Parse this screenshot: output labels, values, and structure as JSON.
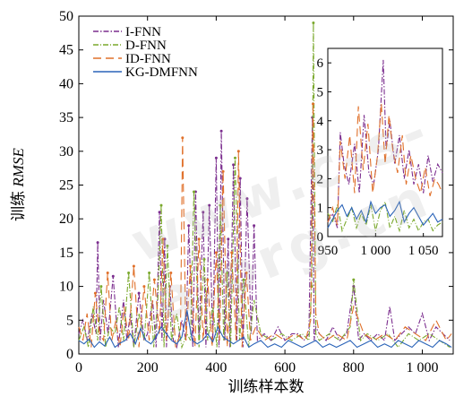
{
  "watermark": "www.c-s-a.org.cn",
  "chart_data": {
    "type": "line",
    "xlabel": "训练样本数",
    "ylabel_prefix": "训练 ",
    "ylabel_italic": "RMSE",
    "xlim": [
      0,
      1090
    ],
    "ylim": [
      0,
      50
    ],
    "xticks": [
      0,
      200,
      400,
      600,
      800,
      1000
    ],
    "xtick_labels": [
      "0",
      "200",
      "400",
      "600",
      "800",
      "1 000"
    ],
    "yticks": [
      0,
      5,
      10,
      15,
      20,
      25,
      30,
      35,
      40,
      45,
      50
    ],
    "legend_position": "top-left",
    "series": [
      {
        "name": "I-FNN",
        "color": "#7b2d8e",
        "dash": "6,2,1.5,2",
        "x": [
          0,
          12,
          25,
          38,
          50,
          55,
          62,
          72,
          85,
          100,
          115,
          130,
          140,
          150,
          160,
          175,
          190,
          200,
          215,
          225,
          235,
          242,
          250,
          255,
          265,
          275,
          285,
          300,
          312,
          320,
          332,
          340,
          350,
          362,
          370,
          380,
          390,
          400,
          408,
          415,
          425,
          435,
          440,
          450,
          460,
          470,
          478,
          490,
          502,
          510,
          520,
          540,
          560,
          580,
          600,
          620,
          640,
          655,
          670,
          680,
          685,
          690,
          700,
          720,
          740,
          760,
          780,
          800,
          815,
          830,
          850,
          870,
          890,
          905,
          920,
          940,
          960,
          980,
          1000,
          1020,
          1040,
          1060,
          1080
        ],
        "y": [
          3,
          5,
          2,
          6,
          3,
          16.5,
          2,
          8,
          3,
          11.5,
          1,
          8,
          2,
          6,
          1,
          9,
          2,
          3,
          8,
          1,
          21,
          2,
          17,
          1,
          10,
          2,
          1,
          5,
          2,
          19,
          1,
          24,
          2,
          21,
          1,
          22,
          2,
          29,
          1,
          33,
          2,
          17,
          1,
          28,
          2,
          26,
          1,
          23,
          3,
          19,
          2,
          3,
          2,
          4,
          2,
          3,
          3,
          2,
          3,
          35,
          2,
          4,
          3,
          2,
          4,
          2,
          3,
          10,
          2,
          3,
          2,
          3,
          2,
          7,
          2,
          3,
          4,
          3,
          6,
          2,
          4,
          3,
          2
        ]
      },
      {
        "name": "D-FNN",
        "color": "#7aa82c",
        "dash": "6,2,1,2",
        "x": [
          0,
          15,
          28,
          42,
          55,
          65,
          78,
          90,
          105,
          118,
          130,
          145,
          160,
          175,
          190,
          205,
          218,
          230,
          240,
          248,
          258,
          270,
          285,
          300,
          315,
          325,
          335,
          350,
          365,
          375,
          390,
          402,
          412,
          422,
          432,
          442,
          455,
          468,
          480,
          495,
          510,
          530,
          560,
          590,
          620,
          650,
          670,
          678,
          683,
          690,
          700,
          730,
          760,
          790,
          800,
          820,
          840,
          870,
          900,
          930,
          960,
          990,
          1020,
          1050,
          1080
        ],
        "y": [
          2,
          4,
          1,
          7,
          2,
          10,
          1,
          4,
          3,
          7,
          2,
          12,
          1,
          6,
          2,
          12,
          1,
          8,
          22,
          1,
          16,
          2,
          6,
          1,
          3,
          2,
          24,
          1,
          14,
          2,
          7,
          1,
          22,
          2,
          12,
          1,
          29,
          2,
          11,
          1,
          8,
          3,
          2,
          3,
          2,
          3,
          2,
          10,
          49,
          3,
          2,
          3,
          2,
          4,
          11,
          2,
          3,
          2,
          3,
          1,
          3,
          2,
          3,
          2,
          1
        ]
      },
      {
        "name": "ID-FNN",
        "color": "#e0702a",
        "dash": "9,5",
        "x": [
          0,
          12,
          24,
          36,
          48,
          60,
          72,
          84,
          96,
          108,
          120,
          132,
          145,
          160,
          175,
          190,
          205,
          220,
          235,
          245,
          255,
          268,
          282,
          296,
          302,
          312,
          325,
          338,
          350,
          362,
          375,
          388,
          400,
          410,
          420,
          432,
          445,
          458,
          465,
          475,
          488,
          500,
          515,
          540,
          570,
          600,
          630,
          660,
          675,
          682,
          690,
          700,
          720,
          750,
          780,
          800,
          830,
          860,
          890,
          920,
          950,
          980,
          1010,
          1040,
          1070,
          1085
        ],
        "y": [
          4,
          2,
          6,
          1,
          9,
          3,
          2,
          12,
          2,
          5,
          1,
          7,
          2,
          13,
          1,
          10,
          2,
          11,
          3,
          17,
          2,
          12,
          1,
          3,
          32,
          2,
          13,
          1,
          17,
          2,
          11,
          1,
          15,
          2,
          27,
          1,
          15,
          2,
          30,
          1,
          12,
          2,
          4,
          2,
          3,
          2,
          3,
          2,
          5,
          37,
          6,
          3,
          2,
          3,
          2,
          7,
          3,
          2,
          3,
          2,
          4,
          3,
          2,
          5,
          2,
          3
        ]
      },
      {
        "name": "KG-DMFNN",
        "color": "#2a63b8",
        "dash": "",
        "x": [
          0,
          15,
          30,
          45,
          60,
          75,
          90,
          105,
          120,
          135,
          150,
          165,
          180,
          195,
          210,
          225,
          240,
          255,
          270,
          285,
          300,
          315,
          330,
          345,
          360,
          375,
          390,
          405,
          420,
          435,
          450,
          465,
          480,
          495,
          510,
          530,
          550,
          570,
          590,
          610,
          630,
          650,
          670,
          690,
          710,
          730,
          750,
          770,
          790,
          810,
          830,
          850,
          870,
          890,
          910,
          930,
          950,
          970,
          990,
          1010,
          1030,
          1050,
          1070,
          1085
        ],
        "y": [
          2,
          1.5,
          2.2,
          1,
          1.8,
          1.2,
          2.5,
          1,
          1.6,
          2,
          3,
          1.5,
          3.8,
          2,
          1.5,
          2.5,
          4,
          3,
          2,
          1.5,
          2.5,
          6.5,
          2,
          1.5,
          2,
          3,
          1.8,
          4,
          2.5,
          2,
          1.5,
          2,
          2.5,
          1,
          1.5,
          2,
          1,
          1.5,
          1,
          2,
          1.5,
          1,
          1.5,
          2,
          1,
          1.5,
          1,
          1.5,
          2,
          1,
          1.5,
          2,
          1,
          1.5,
          1,
          2,
          1.5,
          1,
          2,
          1.5,
          1,
          2,
          1.5,
          1
        ]
      }
    ],
    "inset": {
      "xlim": [
        950,
        1070
      ],
      "ylim": [
        0,
        6.5
      ],
      "xticks": [
        950,
        1000,
        1050
      ],
      "xtick_labels": [
        "950",
        "1 000",
        "1 050"
      ],
      "yticks": [
        0,
        1,
        2,
        3,
        4,
        5,
        6
      ],
      "series": [
        {
          "name": "I-FNN",
          "x": [
            950,
            955,
            960,
            963,
            967,
            972,
            978,
            983,
            988,
            993,
            998,
            1003,
            1008,
            1011,
            1015,
            1020,
            1025,
            1030,
            1035,
            1040,
            1045,
            1050,
            1055,
            1060,
            1065,
            1070
          ],
          "y": [
            0.5,
            0.8,
            0.3,
            3.6,
            2.5,
            1.8,
            3.2,
            1.5,
            4.2,
            2.2,
            1.8,
            3,
            6.1,
            3,
            4,
            2.5,
            3.5,
            2,
            3,
            1.8,
            2.5,
            1.5,
            2.8,
            1.9,
            2.5,
            2.2
          ]
        },
        {
          "name": "D-FNN",
          "x": [
            950,
            955,
            960,
            965,
            970,
            975,
            980,
            985,
            990,
            995,
            1000,
            1005,
            1010,
            1015,
            1020,
            1025,
            1030,
            1035,
            1040,
            1045,
            1050,
            1055,
            1060,
            1065,
            1070
          ],
          "y": [
            0.8,
            0.5,
            1.1,
            0.2,
            0.6,
            1,
            0.3,
            0.8,
            0.4,
            1.1,
            0.2,
            0.9,
            1.2,
            0.3,
            0.7,
            0.2,
            0.9,
            0.3,
            0.6,
            0.2,
            0.5,
            0.6,
            0.2,
            0.4,
            0.5
          ]
        },
        {
          "name": "ID-FNN",
          "x": [
            950,
            955,
            960,
            963,
            968,
            973,
            978,
            982,
            987,
            992,
            997,
            1002,
            1006,
            1010,
            1014,
            1018,
            1023,
            1028,
            1032,
            1037,
            1042,
            1047,
            1052,
            1057,
            1062,
            1066,
            1070
          ],
          "y": [
            0.5,
            1,
            0.4,
            3.3,
            2,
            3.5,
            1.5,
            4.5,
            2.3,
            3.9,
            1.5,
            2.8,
            4.6,
            2.5,
            4.2,
            3,
            2.2,
            3.5,
            1.8,
            2.8,
            2,
            1.5,
            2.4,
            1.4,
            2,
            1.8,
            1.5
          ]
        },
        {
          "name": "KG-DMFNN",
          "x": [
            950,
            955,
            960,
            965,
            970,
            975,
            980,
            985,
            990,
            995,
            1000,
            1005,
            1010,
            1015,
            1020,
            1025,
            1030,
            1035,
            1040,
            1045,
            1050,
            1055,
            1060,
            1065,
            1070
          ],
          "y": [
            0.3,
            0.6,
            0.9,
            1.1,
            0.7,
            1,
            0.6,
            0.9,
            0.5,
            1.2,
            0.8,
            1,
            1.1,
            0.7,
            0.9,
            1.2,
            0.5,
            0.8,
            1,
            0.7,
            0.4,
            0.6,
            0.8,
            0.5,
            0.6
          ]
        }
      ]
    }
  }
}
